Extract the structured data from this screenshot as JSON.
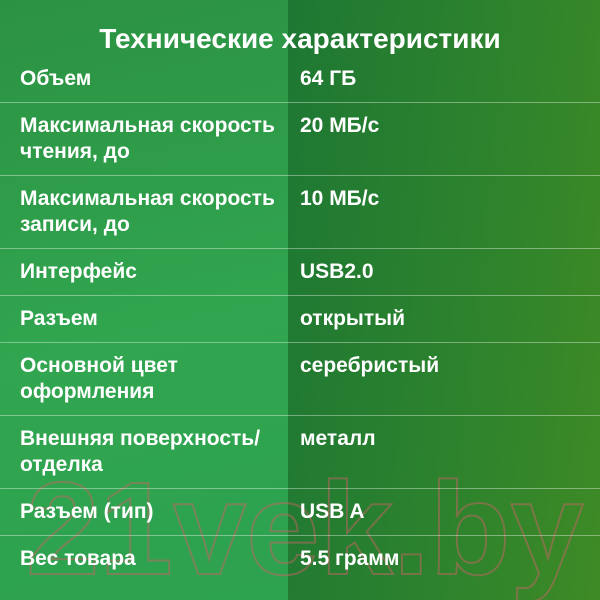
{
  "title": "Технические характеристики",
  "table": {
    "rows": [
      {
        "label": "Объем",
        "value": "64 ГБ"
      },
      {
        "label": "Максимальная скорость чтения, до",
        "value": "20 МБ/с"
      },
      {
        "label": "Максимальная скорость записи, до",
        "value": "10 МБ/с"
      },
      {
        "label": "Интерфейс",
        "value": "USB2.0"
      },
      {
        "label": "Разъем",
        "value": "открытый"
      },
      {
        "label": "Основной цвет оформления",
        "value": "серебристый"
      },
      {
        "label": "Внешняя поверхность/отделка",
        "value": "металл"
      },
      {
        "label": "Разъем (тип)",
        "value": "USB A"
      },
      {
        "label": "Вес товара",
        "value": "5.5 грамм"
      }
    ]
  },
  "watermark": "21vek.by",
  "colors": {
    "text": "#ffffff",
    "left_bg_top": "#2b9242",
    "left_bg_bottom": "#2da24f",
    "right_bg_near_seam": "#1e7833",
    "right_bg_far_right": "#3e8a26",
    "separator": "rgba(255,255,255,0.38)",
    "watermark_stroke": "rgba(195,100,100,0.5)"
  }
}
